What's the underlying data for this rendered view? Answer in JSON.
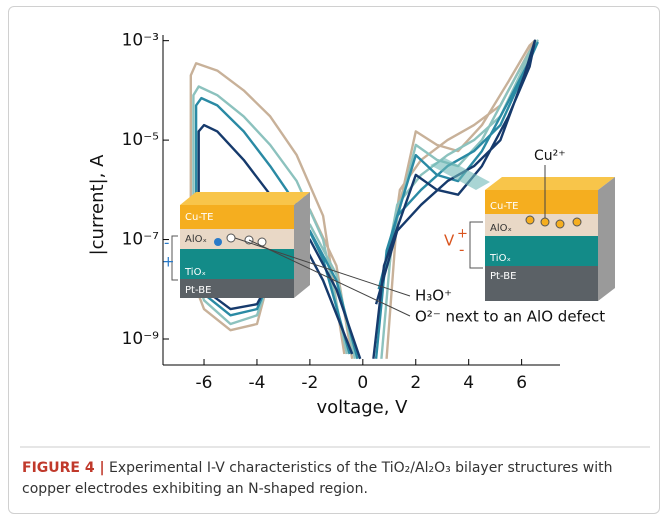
{
  "chart_data": {
    "type": "line",
    "xlabel": "voltage, V",
    "ylabel": "|current|, A",
    "yscale": "log",
    "xlim": [
      -7.55,
      7.45
    ],
    "ylim": [
      3e-10,
      0.0013
    ],
    "xticks": [
      -6,
      -4,
      -2,
      0,
      2,
      4,
      6
    ],
    "yticks": [
      {
        "value": 1e-09,
        "label": "10⁻⁹"
      },
      {
        "value": 1e-07,
        "label": "10⁻⁷"
      },
      {
        "value": 1e-05,
        "label": "10⁻⁵"
      },
      {
        "value": 0.001,
        "label": "10⁻³"
      }
    ],
    "series": [
      {
        "color": "#c8b199",
        "x": [
          0.9,
          1.3,
          2,
          2.8,
          3.6,
          4.5,
          5.5,
          6.3,
          6.5,
          6.2,
          5.2,
          4.2,
          3.2,
          2.2,
          1.4,
          1,
          null,
          -0.4,
          -1,
          -2,
          -3,
          -4,
          -5,
          -6,
          -6.5,
          -6.5,
          -6.3,
          -5.5,
          -4.5,
          -3.5,
          -2.5,
          -1.5,
          -0.7
        ],
        "values": [
          4e-10,
          3e-07,
          1.5e-05,
          8e-06,
          6e-06,
          2e-05,
          0.00015,
          0.0008,
          0.001,
          0.0005,
          5e-05,
          2e-05,
          1e-05,
          4e-06,
          1e-06,
          3e-08,
          null,
          4e-10,
          3e-08,
          4e-07,
          2e-07,
          2e-09,
          1.5e-09,
          4e-09,
          2e-08,
          0.0002,
          0.00035,
          0.00025,
          0.0001,
          3e-05,
          5e-06,
          3e-07,
          5e-10
        ]
      },
      {
        "color": "#8cc2be",
        "x": [
          0.7,
          1.1,
          2,
          2.8,
          3.6,
          4.5,
          5.5,
          6.3,
          6.6,
          6.2,
          5.2,
          4.2,
          3.2,
          2.2,
          1.3,
          0.8,
          null,
          -0.3,
          -1,
          -2,
          -3,
          -4,
          -5,
          -6,
          -6.4,
          -6.4,
          -6.2,
          -5.5,
          -4.5,
          -3.5,
          -2.5,
          -1.5,
          -0.6
        ],
        "values": [
          4e-10,
          1e-07,
          8e-06,
          4e-06,
          3e-06,
          1e-05,
          0.0001,
          0.0006,
          0.001,
          0.0004,
          3e-05,
          1e-05,
          5e-06,
          2e-06,
          5e-07,
          2e-08,
          null,
          4e-10,
          2e-08,
          2e-07,
          1e-07,
          3e-09,
          2e-09,
          6e-09,
          3e-08,
          8e-05,
          0.00012,
          8e-05,
          3e-05,
          8e-06,
          1.5e-06,
          1e-07,
          5e-10
        ]
      },
      {
        "color": "#2a8aa4",
        "x": [
          0.5,
          0.9,
          2,
          2.8,
          3.6,
          4.5,
          5.5,
          6.3,
          6.6,
          6.2,
          5.2,
          4.2,
          3.2,
          2.2,
          1.3,
          0.6,
          null,
          -0.2,
          -1,
          -2,
          -3,
          -4,
          -5,
          -6,
          -6.3,
          -6.3,
          -6.1,
          -5.5,
          -4.5,
          -3.5,
          -2.5,
          -1.5,
          -0.5
        ],
        "values": [
          4e-10,
          6e-08,
          5e-06,
          2e-06,
          1.5e-06,
          6e-06,
          6e-05,
          0.0004,
          0.0009,
          0.0003,
          2e-05,
          6e-06,
          3e-06,
          1e-06,
          3e-07,
          1e-08,
          null,
          4e-10,
          1.5e-08,
          1.5e-07,
          7e-08,
          4e-09,
          3e-09,
          8e-09,
          4e-08,
          5e-05,
          7e-05,
          5e-05,
          1.5e-05,
          3e-06,
          5e-07,
          4e-08,
          5e-10
        ]
      },
      {
        "color": "#163a6c",
        "x": [
          0.4,
          0.8,
          2,
          2.8,
          3.6,
          4.5,
          5.5,
          6.3,
          6.5,
          6.1,
          5.2,
          4.2,
          3.2,
          2.2,
          1.3,
          0.5,
          null,
          -0.1,
          -1,
          -2,
          -3,
          -4,
          -5,
          -6,
          -6.2,
          -6.2,
          -6,
          -5.5,
          -4.5,
          -3.5,
          -2.5,
          -1.5,
          -0.4
        ],
        "values": [
          4e-10,
          3e-08,
          2e-06,
          1e-06,
          8e-07,
          3e-06,
          3e-05,
          0.0003,
          0.001,
          0.0002,
          1e-05,
          3e-06,
          1.5e-06,
          5e-07,
          1.5e-07,
          5e-09,
          null,
          4e-10,
          1e-08,
          1e-07,
          5e-08,
          5e-09,
          4e-09,
          1e-08,
          5e-08,
          1.5e-05,
          2e-05,
          1.5e-05,
          4e-06,
          8e-07,
          1.5e-07,
          1.5e-08,
          5e-10
        ]
      }
    ],
    "annotations": {
      "left_top": "Cu-TE",
      "left_mid": "AlOₓ",
      "left_ti": "TiOₓ",
      "left_bottom": "Pt-BE",
      "left_minus": "-",
      "left_plus": "+",
      "h3o": "H₃O⁺",
      "o2": "O²⁻ next to an AlO defect",
      "cu": "Cu²⁺",
      "right_top": "Cu-TE",
      "right_mid": "AlOₓ",
      "right_ti": "TiOₓ",
      "right_bottom": "Pt-BE",
      "right_v": "V",
      "right_plus": "+",
      "right_minus": "-"
    }
  },
  "caption": {
    "label": "FIGURE 4 |",
    "text": "Experimental I-V characteristics of the TiO₂/Al₂O₃ bilayer structures with copper electrodes exhibiting an N-shaped region."
  }
}
